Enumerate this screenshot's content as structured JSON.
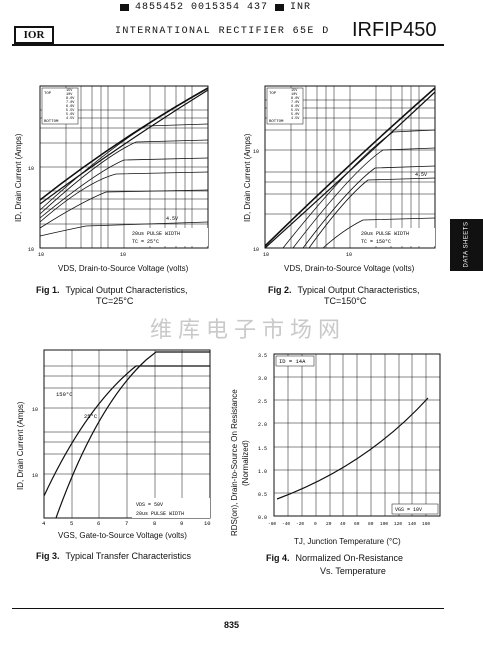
{
  "header": {
    "barcode_text": "4855452 0015354 437",
    "bar_suffix": "INR",
    "logo": "IOR",
    "company": "INTERNATIONAL RECTIFIER 65E D",
    "part_number": "IRFIP450",
    "side_tab": "DATA SHEETS"
  },
  "figures": [
    {
      "caption_num": "Fig 1.",
      "caption_text": "Typical Output Characteristics,",
      "caption_line2": "TC=25°C",
      "xlabel": "VDS, Drain-to-Source Voltage (volts)",
      "ylabel": "ID, Drain Current (Amps)",
      "legend_top": "TOP",
      "legend_bottom": "BOTTOM",
      "vgs": [
        "15V",
        "10V",
        "8.0V",
        "7.0V",
        "6.0V",
        "5.5V",
        "5.0V",
        "4.5V"
      ],
      "note_line1": "20us PULSE WIDTH",
      "note_line2": "TC = 25°C",
      "curve_label": "4.5V",
      "tick_y": [
        "10",
        "10"
      ],
      "tick_x": [
        "10",
        "10"
      ]
    },
    {
      "caption_num": "Fig 2.",
      "caption_text": "Typical Output Characteristics,",
      "caption_line2": "TC=150°C",
      "xlabel": "VDS, Drain-to-Source Voltage (volts)",
      "ylabel": "ID, Drain Current (Amps)",
      "legend_top": "TOP",
      "legend_bottom": "BOTTOM",
      "vgs": [
        "15V",
        "10V",
        "8.0V",
        "7.0V",
        "6.0V",
        "5.5V",
        "5.0V",
        "4.5V"
      ],
      "note_line1": "20us PULSE WIDTH",
      "note_line2": "TC = 150°C",
      "curve_label": "4.5V",
      "tick_y": [
        "10",
        "10"
      ],
      "tick_x": [
        "10",
        "10"
      ]
    },
    {
      "caption_num": "Fig 3.",
      "caption_text": "Typical Transfer Characteristics",
      "xlabel": "VGS, Gate-to-Source Voltage (volts)",
      "ylabel": "ID, Drain Current (Amps)",
      "label_150": "150°C",
      "label_25": "25°C",
      "note_line1": "VDS = 50V",
      "note_line2": "20us PULSE WIDTH",
      "tick_x": [
        "4",
        "5",
        "6",
        "7",
        "8",
        "9",
        "10"
      ],
      "tick_y": [
        "10",
        "10"
      ]
    },
    {
      "caption_num": "Fig 4.",
      "caption_text": "Normalized On-Resistance",
      "caption_line2": "Vs. Temperature",
      "xlabel": "TJ, Junction Temperature (°C)",
      "ylabel_1": "RDS(on), Drain-to-Source On Resistance",
      "ylabel_2": "(Normalized)",
      "id_label": "ID = 14A",
      "vgs_label": "VGS = 10V",
      "tick_x": [
        "-60",
        "-40",
        "-20",
        "0",
        "20",
        "40",
        "60",
        "80",
        "100",
        "120",
        "140",
        "160"
      ],
      "tick_y": [
        "0.0",
        "0.5",
        "1.0",
        "1.5",
        "2.0",
        "2.5",
        "3.0",
        "3.5"
      ]
    }
  ],
  "watermark": "维库电子市场网",
  "page_number": "835"
}
